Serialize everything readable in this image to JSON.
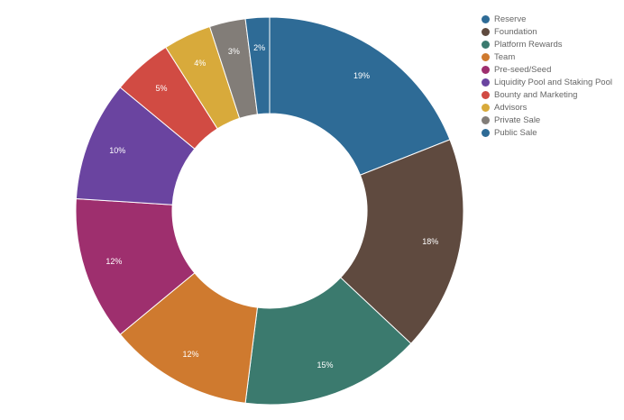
{
  "chart_data": {
    "type": "pie",
    "donut": true,
    "legend_position": "top-right",
    "series": [
      {
        "name": "Reserve",
        "value": 19,
        "label": "19%",
        "color": "#2e6b96"
      },
      {
        "name": "Foundation",
        "value": 18,
        "label": "18%",
        "color": "#5f4a3f"
      },
      {
        "name": "Platform Rewards",
        "value": 15,
        "label": "15%",
        "color": "#3b7a6e"
      },
      {
        "name": "Team",
        "value": 12,
        "label": "12%",
        "color": "#cf7a2f"
      },
      {
        "name": "Pre-seed/Seed",
        "value": 12,
        "label": "12%",
        "color": "#9e2f6e"
      },
      {
        "name": "Liquidity Pool and Staking Pool",
        "value": 10,
        "label": "10%",
        "color": "#6a44a0"
      },
      {
        "name": "Bounty and Marketing",
        "value": 5,
        "label": "5%",
        "color": "#d14b43"
      },
      {
        "name": "Advisors",
        "value": 4,
        "label": "4%",
        "color": "#d8aa3b"
      },
      {
        "name": "Private Sale",
        "value": 3,
        "label": "3%",
        "color": "#827d78"
      },
      {
        "name": "Public Sale",
        "value": 2,
        "label": "2%",
        "color": "#2e6b96"
      }
    ]
  }
}
